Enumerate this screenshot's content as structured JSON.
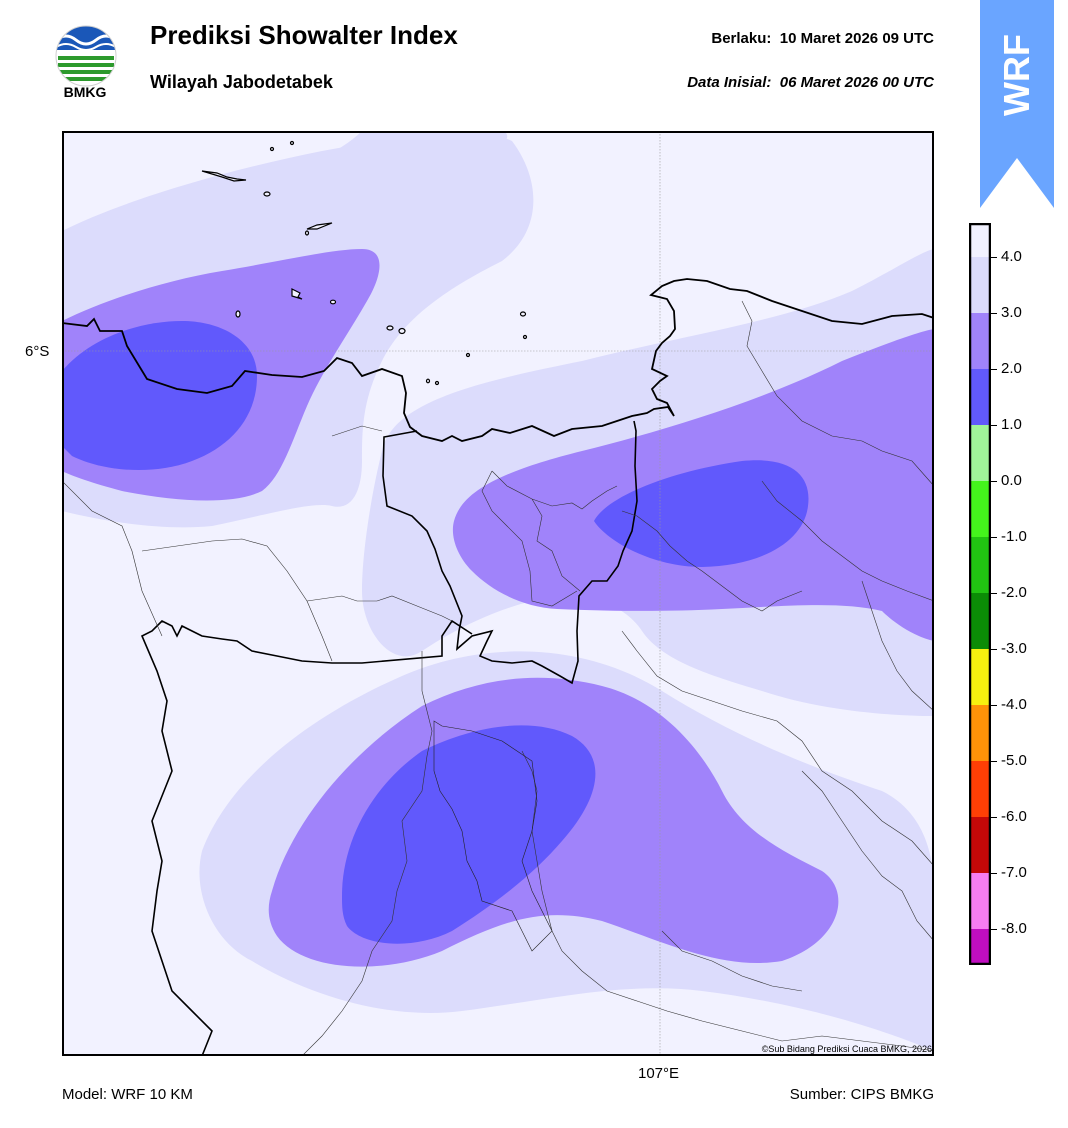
{
  "header": {
    "title": "Prediksi Showalter Index",
    "subtitle": "Wilayah Jabodetabek",
    "valid_label": "Berlaku:",
    "valid_value": "10 Maret 2026 09 UTC",
    "init_label": "Data Inisial:",
    "init_value": "06 Maret 2026 00 UTC"
  },
  "logo": {
    "text": "BMKG",
    "icon": "bmkg-logo"
  },
  "ribbon": {
    "text": "WRF",
    "color": "#6aa5ff"
  },
  "map": {
    "lat_label": "6°S",
    "lon_label": "107°E",
    "copyright": "©Sub Bidang Prediksi Cuaca BMKG, 2026",
    "colors": {
      "background": "#f2f2ff",
      "c3": "#dcdcfc",
      "c2": "#a083fa",
      "c1": "#6159fc"
    }
  },
  "footer": {
    "model": "Model: WRF 10 KM",
    "source": "Sumber: CIPS BMKG"
  },
  "colorbar": {
    "labels": [
      "4.0",
      "3.0",
      "2.0",
      "1.0",
      "0.0",
      "-1.0",
      "-2.0",
      "-3.0",
      "-4.0",
      "-5.0",
      "-6.0",
      "-7.0",
      "-8.0"
    ],
    "colors": [
      "#f2f2ff",
      "#dcdcfc",
      "#a083fa",
      "#6159fc",
      "#a0f49a",
      "#44f41c",
      "#21c412",
      "#0b8c06",
      "#f7f20f",
      "#fe9308",
      "#fe3f05",
      "#c40808",
      "#f77df2",
      "#c00ec0",
      "#5e1a6a"
    ]
  }
}
